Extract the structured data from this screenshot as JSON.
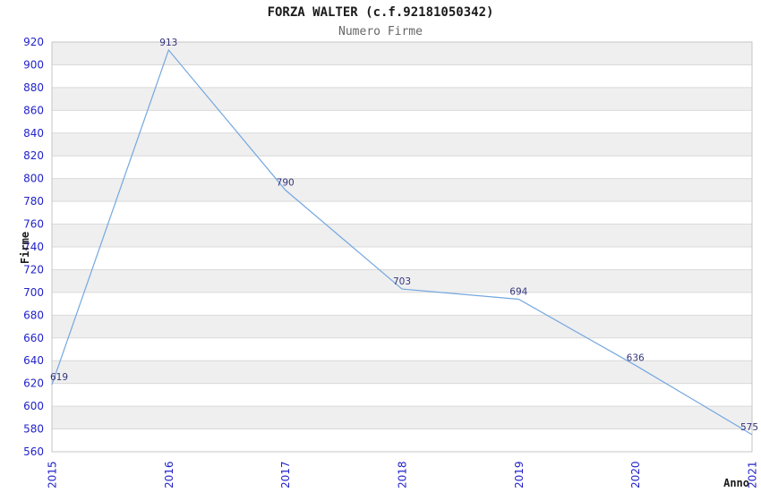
{
  "chart_data": {
    "type": "line",
    "title": "FORZA WALTER (c.f.92181050342)",
    "subtitle": "Numero Firme",
    "xlabel": "Anno",
    "ylabel": "Firme",
    "categories": [
      "2015",
      "2016",
      "2017",
      "2018",
      "2019",
      "2020",
      "2021"
    ],
    "series": [
      {
        "name": "Numero Firme",
        "values": [
          619,
          913,
          790,
          703,
          694,
          636,
          575
        ]
      }
    ],
    "ylim": [
      560,
      920
    ],
    "ytick_step": 20,
    "grid": "horizontal-stripes-alternating",
    "legend": "none",
    "colors": {
      "line": "#74a7e0",
      "tick_label": "#2222cc",
      "data_label": "#34347c",
      "stripe": "#efefef",
      "gridline": "#d9d9d9",
      "plot_border": "#c6c6c6",
      "title": "#1a1a1a",
      "subtitle": "#666666",
      "background": "#ffffff"
    }
  }
}
